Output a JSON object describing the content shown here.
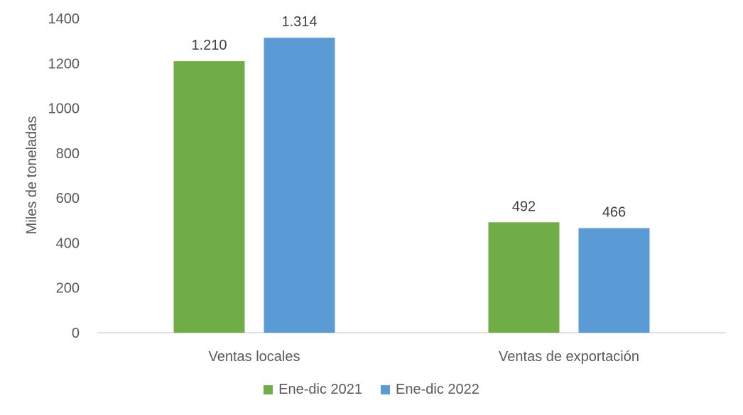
{
  "chart_data": {
    "type": "bar",
    "title": "",
    "xlabel": "",
    "ylabel": "Miles de toneladas",
    "ylim": [
      0,
      1400
    ],
    "yticks": [
      0,
      200,
      400,
      600,
      800,
      1000,
      1200,
      1400
    ],
    "grid": false,
    "legend_position": "bottom",
    "categories": [
      "Ventas locales",
      "Ventas de exportación"
    ],
    "series": [
      {
        "name": "Ene-dic 2021",
        "color": "#70AD47",
        "values": [
          1210,
          492
        ],
        "labels": [
          "1.210",
          "492"
        ]
      },
      {
        "name": "Ene-dic 2022",
        "color": "#5B9BD5",
        "values": [
          1314,
          466
        ],
        "labels": [
          "1.314",
          "466"
        ]
      }
    ]
  },
  "legend": {
    "items": [
      {
        "label": "Ene-dic 2021",
        "color": "#70AD47"
      },
      {
        "label": "Ene-dic 2022",
        "color": "#5B9BD5"
      }
    ]
  }
}
